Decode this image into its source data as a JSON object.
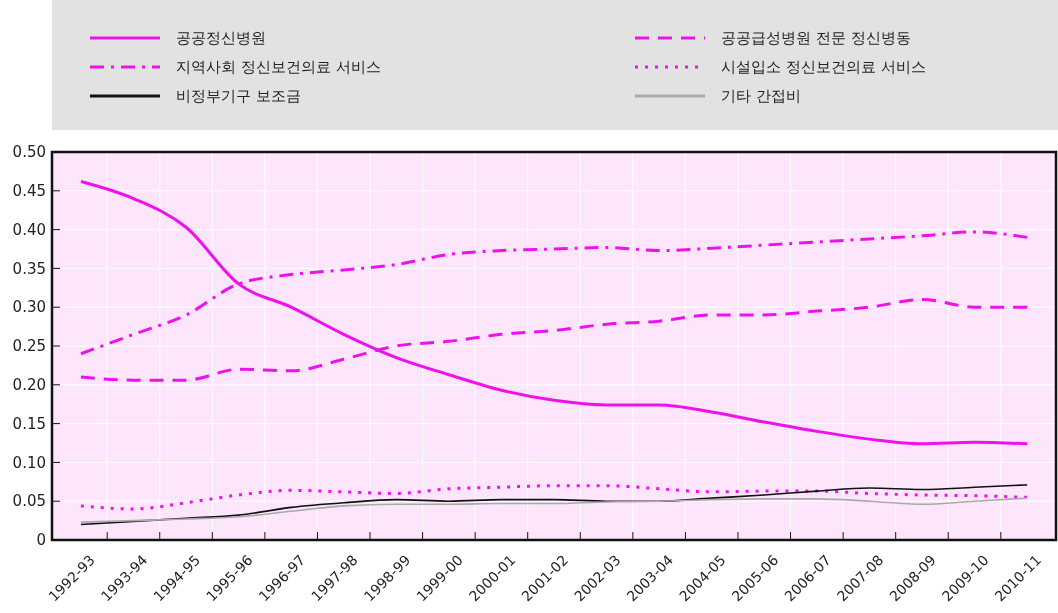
{
  "chart_data": {
    "type": "line",
    "categories": [
      "1992-93",
      "1993-94",
      "1994-95",
      "1995-96",
      "1996-97",
      "1997-98",
      "1998-99",
      "1999-00",
      "2000-01",
      "2001-02",
      "2002-03",
      "2003-04",
      "2004-05",
      "2005-06",
      "2006-07",
      "2007-08",
      "2008-09",
      "2009-10",
      "2010-11"
    ],
    "ylim": [
      0,
      0.5
    ],
    "yticks": [
      {
        "value": 0,
        "label": "0"
      },
      {
        "value": 0.05,
        "label": "0.05"
      },
      {
        "value": 0.1,
        "label": "0.10"
      },
      {
        "value": 0.15,
        "label": "0.15"
      },
      {
        "value": 0.2,
        "label": "0.20"
      },
      {
        "value": 0.25,
        "label": "0.25"
      },
      {
        "value": 0.3,
        "label": "0.30"
      },
      {
        "value": 0.35,
        "label": "0.35"
      },
      {
        "value": 0.4,
        "label": "0.40"
      },
      {
        "value": 0.45,
        "label": "0.45"
      },
      {
        "value": 0.5,
        "label": "0.50"
      }
    ],
    "grid": true,
    "legend": "top",
    "series": [
      {
        "name": "공공정신병원",
        "color": "#ee11ee",
        "line_style": "solid",
        "values": [
          0.462,
          0.44,
          0.403,
          0.33,
          0.3,
          0.265,
          0.235,
          0.213,
          0.193,
          0.18,
          0.174,
          0.174,
          0.165,
          0.152,
          0.14,
          0.13,
          0.124,
          0.126,
          0.124
        ]
      },
      {
        "name": "공공급성병원 전문 정신병동",
        "color": "#ee11ee",
        "line_style": "dashed",
        "values": [
          0.21,
          0.206,
          0.206,
          0.22,
          0.218,
          0.233,
          0.25,
          0.256,
          0.265,
          0.27,
          0.278,
          0.282,
          0.29,
          0.29,
          0.295,
          0.3,
          0.31,
          0.3,
          0.3
        ]
      },
      {
        "name": "지역사회 정신보건의료 서비스",
        "color": "#ee11ee",
        "line_style": "dashdot",
        "values": [
          0.24,
          0.265,
          0.29,
          0.33,
          0.342,
          0.348,
          0.355,
          0.368,
          0.373,
          0.375,
          0.377,
          0.373,
          0.376,
          0.38,
          0.384,
          0.388,
          0.392,
          0.397,
          0.39
        ]
      },
      {
        "name": "시설입소 정신보건의료 서비스",
        "color": "#ee11ee",
        "line_style": "dotted",
        "values": [
          0.044,
          0.04,
          0.048,
          0.058,
          0.064,
          0.062,
          0.06,
          0.066,
          0.068,
          0.07,
          0.07,
          0.066,
          0.062,
          0.063,
          0.063,
          0.06,
          0.058,
          0.057,
          0.055
        ]
      },
      {
        "name": "비정부기구 보조금",
        "color": "#111111",
        "line_style": "solid",
        "values": [
          0.02,
          0.024,
          0.028,
          0.032,
          0.042,
          0.048,
          0.052,
          0.05,
          0.052,
          0.052,
          0.05,
          0.05,
          0.054,
          0.058,
          0.063,
          0.067,
          0.065,
          0.068,
          0.071
        ]
      },
      {
        "name": "기타 간접비",
        "color": "#aaaaaa",
        "line_style": "solid",
        "values": [
          0.023,
          0.025,
          0.027,
          0.03,
          0.037,
          0.044,
          0.046,
          0.046,
          0.047,
          0.047,
          0.049,
          0.05,
          0.052,
          0.053,
          0.053,
          0.05,
          0.046,
          0.05,
          0.054
        ]
      }
    ]
  }
}
